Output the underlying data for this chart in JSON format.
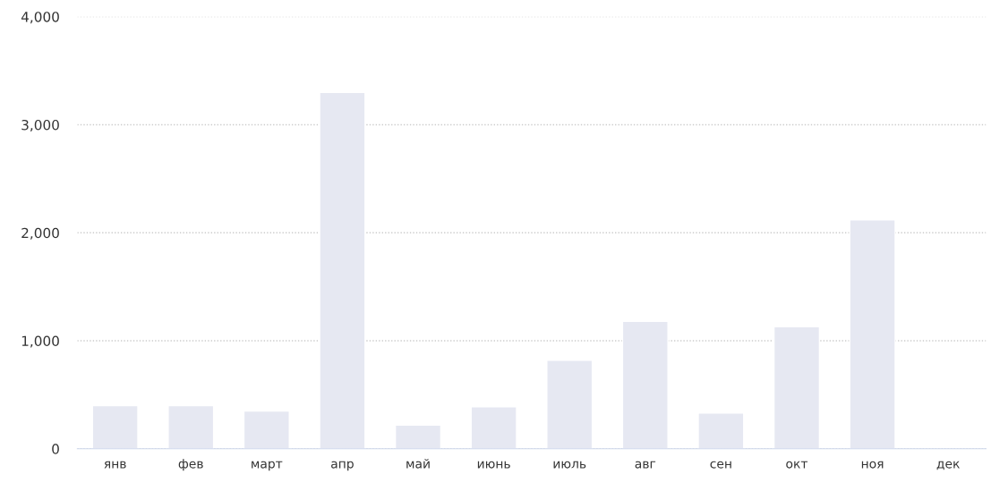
{
  "chart_data": {
    "type": "bar",
    "categories": [
      "янв",
      "фев",
      "март",
      "апр",
      "май",
      "июнь",
      "июль",
      "авг",
      "сен",
      "окт",
      "ноя",
      "дек"
    ],
    "values": [
      400,
      400,
      350,
      3300,
      220,
      390,
      820,
      1180,
      330,
      1130,
      2120,
      null
    ],
    "color": "#e6e8f2",
    "ylim": [
      0,
      4000
    ],
    "yticks": [
      {
        "value": 0,
        "label": "0"
      },
      {
        "value": 1000,
        "label": "1,000"
      },
      {
        "value": 2000,
        "label": "2,000"
      },
      {
        "value": 3000,
        "label": "3,000"
      },
      {
        "value": 4000,
        "label": "4,000"
      }
    ],
    "grid": "y"
  }
}
